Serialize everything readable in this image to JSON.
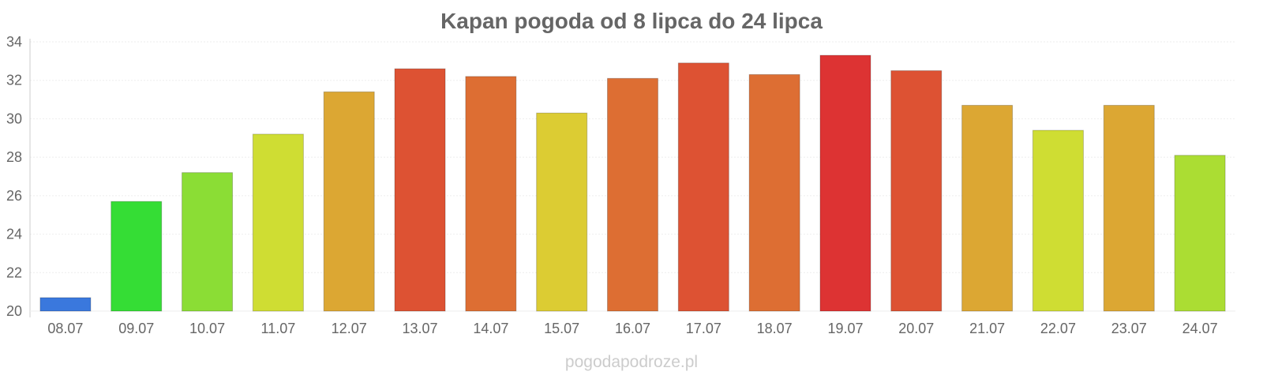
{
  "chart_data": {
    "type": "bar",
    "title": "Kapan pogoda od 8 lipca do 24 lipca",
    "categories": [
      "08.07",
      "09.07",
      "10.07",
      "11.07",
      "12.07",
      "13.07",
      "14.07",
      "15.07",
      "16.07",
      "17.07",
      "18.07",
      "19.07",
      "20.07",
      "21.07",
      "22.07",
      "23.07",
      "24.07"
    ],
    "values": [
      20.7,
      25.7,
      27.2,
      29.2,
      31.4,
      32.6,
      32.2,
      30.3,
      32.1,
      32.9,
      32.3,
      33.3,
      32.5,
      30.7,
      29.4,
      30.7,
      28.1
    ],
    "bar_colors": [
      "#3a78dd",
      "#35dd35",
      "#8bdd35",
      "#cfdd33",
      "#dca733",
      "#dd5233",
      "#dd6e33",
      "#dccc33",
      "#dd6e33",
      "#dd5233",
      "#dd6e33",
      "#dd3333",
      "#dd5233",
      "#dca733",
      "#cfdd33",
      "#dca733",
      "#abdd33"
    ],
    "y_ticks": [
      20,
      22,
      24,
      26,
      28,
      30,
      32,
      34
    ],
    "ylim": [
      20,
      34
    ],
    "xlabel": "",
    "ylabel": "",
    "grid": true,
    "legend": false
  },
  "source_label": "pogodapodroze.pl"
}
